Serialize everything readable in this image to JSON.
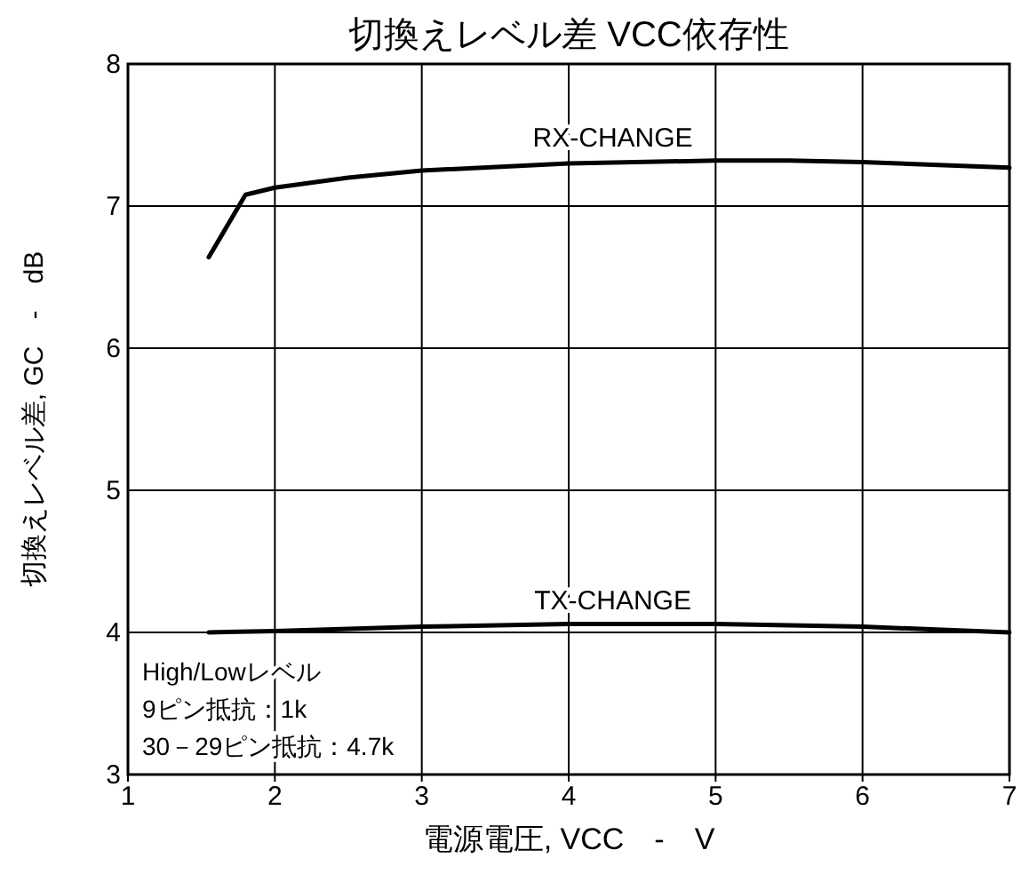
{
  "chart_data": {
    "type": "line",
    "title": "切換えレベル差 VCC依存性",
    "xlabel": "電源電圧, VCC　-　V",
    "ylabel": "切換えレベル差, GC　-　dB",
    "series": [
      {
        "name": "RX-CHANGE",
        "color": "#000000",
        "x": [
          1.55,
          1.8,
          2,
          2.5,
          3,
          4,
          5,
          5.5,
          6,
          7
        ],
        "values": [
          6.64,
          7.08,
          7.13,
          7.2,
          7.25,
          7.3,
          7.32,
          7.32,
          7.31,
          7.27
        ]
      },
      {
        "name": "TX-CHANGE",
        "color": "#000000",
        "x": [
          1.55,
          2,
          3,
          4,
          5,
          6,
          7
        ],
        "values": [
          4.0,
          4.01,
          4.04,
          4.06,
          4.06,
          4.04,
          4.0
        ]
      }
    ],
    "annotations": [
      "High/Lowレベル",
      "9ピン抵抗：1k",
      "30－29ピン抵抗：4.7k"
    ],
    "xlim": [
      1,
      7
    ],
    "ylim": [
      3,
      8
    ],
    "xticks": [
      1,
      2,
      3,
      4,
      5,
      6,
      7
    ],
    "yticks": [
      3,
      4,
      5,
      6,
      7,
      8
    ],
    "grid": true,
    "marker": "none",
    "line_style": "solid"
  }
}
